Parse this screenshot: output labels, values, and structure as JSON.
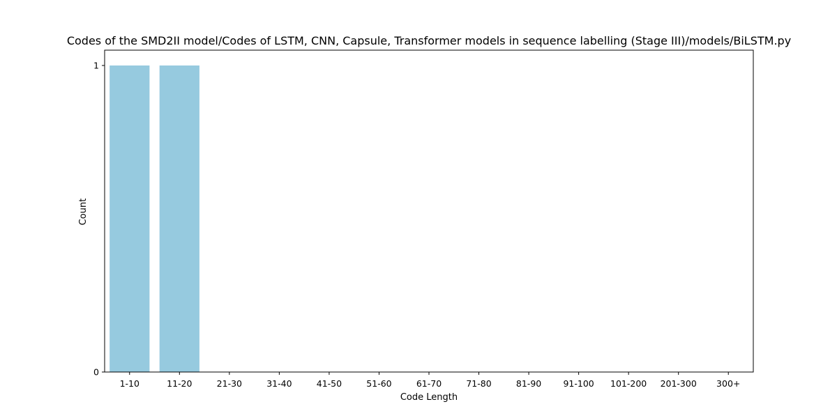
{
  "chart_data": {
    "type": "bar",
    "title": "Codes of the SMD2II model/Codes of LSTM, CNN, Capsule, Transformer models in sequence labelling (Stage III)/models/BiLSTM.py",
    "xlabel": "Code Length",
    "ylabel": "Count",
    "categories": [
      "1-10",
      "11-20",
      "21-30",
      "31-40",
      "41-50",
      "51-60",
      "61-70",
      "71-80",
      "81-90",
      "91-100",
      "101-200",
      "201-300",
      "300+"
    ],
    "values": [
      1,
      1,
      0,
      0,
      0,
      0,
      0,
      0,
      0,
      0,
      0,
      0,
      0
    ],
    "yticks": [
      0,
      1
    ],
    "ylim": [
      0,
      1
    ],
    "grid": false,
    "colors": {
      "bar": "#96cadf",
      "axes": "#000000",
      "background": "#ffffff"
    }
  }
}
